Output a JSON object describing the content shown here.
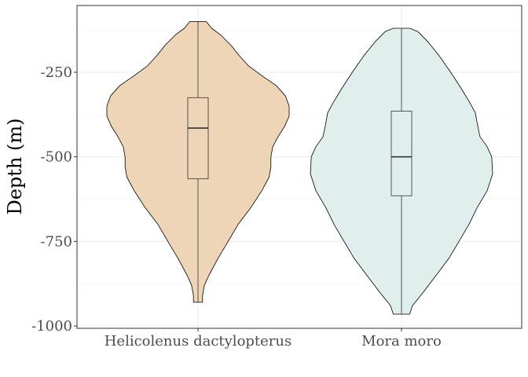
{
  "chart_data": {
    "type": "violin",
    "title": "",
    "xlabel": "",
    "ylabel": "Depth (m)",
    "categories": [
      "Helicolenus dactylopterus",
      "Mora moro"
    ],
    "y_ticks": [
      -250,
      -500,
      -750,
      -1000
    ],
    "y_tick_labels": [
      "-250",
      "-500",
      "-750",
      "-1000"
    ],
    "ylim": [
      -1010,
      -55
    ],
    "grid": true,
    "legend": "none",
    "series": [
      {
        "category": "Helicolenus dactylopterus",
        "fill": "#eed5b7",
        "min": -930,
        "q1": -565,
        "median": -415,
        "q3": -325,
        "max": -100,
        "density": [
          [
            -930,
            0.05
          ],
          [
            -910,
            0.05
          ],
          [
            -880,
            0.07
          ],
          [
            -850,
            0.12
          ],
          [
            -800,
            0.22
          ],
          [
            -750,
            0.33
          ],
          [
            -700,
            0.44
          ],
          [
            -650,
            0.58
          ],
          [
            -600,
            0.7
          ],
          [
            -560,
            0.78
          ],
          [
            -530,
            0.8
          ],
          [
            -500,
            0.8
          ],
          [
            -470,
            0.82
          ],
          [
            -440,
            0.88
          ],
          [
            -410,
            0.95
          ],
          [
            -380,
            1.0
          ],
          [
            -350,
            1.0
          ],
          [
            -320,
            0.96
          ],
          [
            -290,
            0.86
          ],
          [
            -260,
            0.7
          ],
          [
            -230,
            0.55
          ],
          [
            -200,
            0.45
          ],
          [
            -170,
            0.36
          ],
          [
            -140,
            0.25
          ],
          [
            -120,
            0.15
          ],
          [
            -100,
            0.09
          ]
        ]
      },
      {
        "category": "Mora moro",
        "fill": "#e0eeee",
        "min": -965,
        "q1": -615,
        "median": -500,
        "q3": -365,
        "max": -120,
        "density": [
          [
            -965,
            0.09
          ],
          [
            -940,
            0.12
          ],
          [
            -900,
            0.24
          ],
          [
            -850,
            0.38
          ],
          [
            -800,
            0.52
          ],
          [
            -750,
            0.63
          ],
          [
            -700,
            0.74
          ],
          [
            -650,
            0.83
          ],
          [
            -600,
            0.94
          ],
          [
            -550,
            1.0
          ],
          [
            -500,
            0.99
          ],
          [
            -470,
            0.94
          ],
          [
            -440,
            0.86
          ],
          [
            -400,
            0.83
          ],
          [
            -370,
            0.81
          ],
          [
            -340,
            0.75
          ],
          [
            -300,
            0.66
          ],
          [
            -250,
            0.54
          ],
          [
            -200,
            0.41
          ],
          [
            -160,
            0.29
          ],
          [
            -130,
            0.18
          ],
          [
            -120,
            0.09
          ]
        ]
      }
    ]
  }
}
